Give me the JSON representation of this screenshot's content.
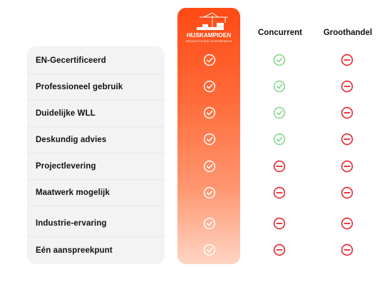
{
  "logo": {
    "text": "HIJSKAMPIOEN",
    "tagline": "SPECIALIST IN HIJS- EN HEFMIDDELEN",
    "icon": "crane-icon"
  },
  "columns": [
    {
      "label": "Concurrent"
    },
    {
      "label": "Groothandel"
    }
  ],
  "colors": {
    "brand": "#ff4a14",
    "check_green": "#7fd48a",
    "minus_red": "#e3262d",
    "row_bg": "#f3f3f3"
  },
  "rows": [
    {
      "label": "EN-Gecertificeerd",
      "hijskampioen": "check",
      "concurrent": "check",
      "groothandel": "minus"
    },
    {
      "label": "Professioneel gebruik",
      "hijskampioen": "check",
      "concurrent": "check",
      "groothandel": "minus"
    },
    {
      "label": "Duidelijke WLL",
      "hijskampioen": "check",
      "concurrent": "check",
      "groothandel": "minus"
    },
    {
      "label": "Deskundig advies",
      "hijskampioen": "check",
      "concurrent": "check",
      "groothandel": "minus"
    },
    {
      "label": "Projectlevering",
      "hijskampioen": "check",
      "concurrent": "minus",
      "groothandel": "minus"
    },
    {
      "label": "Maatwerk mogelijk",
      "hijskampioen": "check",
      "concurrent": "minus",
      "groothandel": "minus"
    },
    {
      "label": "Industrie-ervaring",
      "hijskampioen": "check",
      "concurrent": "minus",
      "groothandel": "minus"
    },
    {
      "label": "Eén aanspreekpunt",
      "hijskampioen": "check",
      "concurrent": "minus",
      "groothandel": "minus"
    }
  ]
}
